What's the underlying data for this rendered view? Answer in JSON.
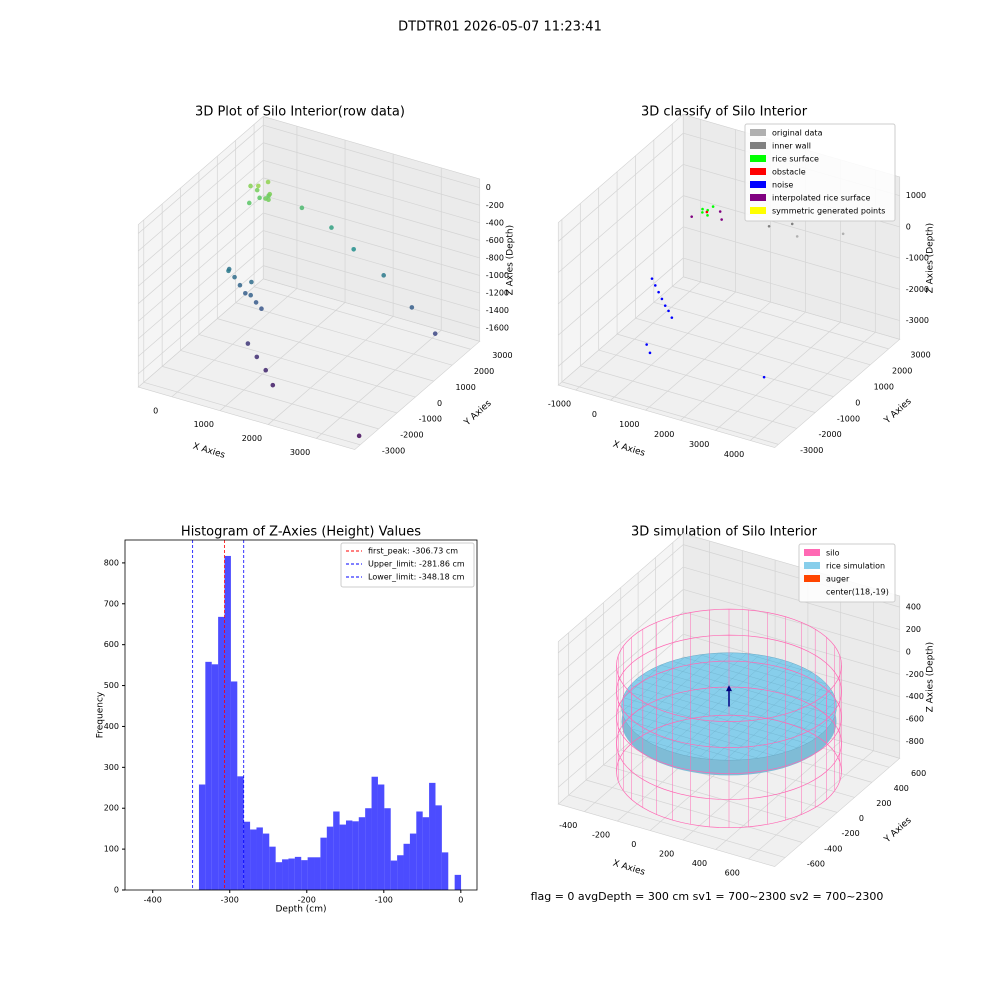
{
  "suptitle": "DTDTR01 2026-05-07 11:23:41",
  "footer": "flag = 0     avgDepth = 300 cm  sv1 = 700~2300  sv2 = 700~2300",
  "chart_data": [
    {
      "type": "scatter3d",
      "title": "3D Plot of Silo Interior(row data)",
      "xlabel": "X Axies",
      "ylabel": "Y Axies",
      "zlabel": "Z Axies (Depth)",
      "xlim": [
        -700,
        3800
      ],
      "ylim": [
        -3300,
        3500
      ],
      "zlim": [
        -1750,
        100
      ],
      "xticks": [
        0,
        1000,
        2000,
        3000
      ],
      "yticks": [
        -3000,
        -2000,
        -1000,
        0,
        1000,
        2000,
        3000
      ],
      "zticks": [
        -1600,
        -1400,
        -1200,
        -1000,
        -800,
        -600,
        -400,
        -200,
        0
      ],
      "colormap": "viridis",
      "x": [
        -200,
        -100,
        0,
        100,
        200,
        -150,
        50,
        150,
        -50,
        250,
        600,
        1100,
        1600,
        2300,
        3000,
        3600,
        -300,
        -150,
        0,
        150,
        300,
        450,
        600,
        -200,
        200,
        700,
        1000,
        1300,
        1600,
        3700
      ],
      "y": [
        1500,
        1600,
        1400,
        1700,
        1500,
        1300,
        1800,
        1400,
        1600,
        1300,
        2200,
        2500,
        2400,
        2200,
        1900,
        1600,
        600,
        500,
        400,
        300,
        200,
        100,
        0,
        300,
        500,
        -1000,
        -1300,
        -1600,
        -2000,
        -2800
      ],
      "z": [
        -250,
        -300,
        -200,
        -350,
        -280,
        -400,
        -220,
        -320,
        -380,
        -300,
        -500,
        -700,
        -850,
        -1000,
        -1200,
        -1350,
        -1050,
        -1100,
        -1150,
        -1200,
        -1180,
        -1220,
        -1250,
        -1000,
        -1100,
        -1450,
        -1500,
        -1550,
        -1600,
        -1700
      ]
    },
    {
      "type": "scatter3d",
      "title": "3D classify of Silo Interior",
      "xlabel": "X Axies",
      "ylabel": "Y Axies",
      "zlabel": "Z Axies (Depth)",
      "xlim": [
        -1500,
        4700
      ],
      "ylim": [
        -3200,
        3600
      ],
      "zlim": [
        -3600,
        1600
      ],
      "xticks": [
        -1000,
        0,
        1000,
        2000,
        3000,
        4000
      ],
      "yticks": [
        -3000,
        -2000,
        -1000,
        0,
        1000,
        2000,
        3000
      ],
      "zticks": [
        -3000,
        -2000,
        -1000,
        0,
        1000
      ],
      "series": [
        {
          "name": "original data",
          "color": "#b0b0b0",
          "x": [
            2500,
            3500
          ],
          "y": [
            2200,
            2800
          ],
          "z": [
            -300,
            -200
          ]
        },
        {
          "name": "inner wall",
          "color": "#808080",
          "x": [
            1800,
            2200
          ],
          "y": [
            2000,
            2500
          ],
          "z": [
            -100,
            -150
          ]
        },
        {
          "name": "rice surface",
          "color": "#00ff00",
          "x": [
            100,
            200,
            300,
            0,
            250
          ],
          "y": [
            1600,
            1700,
            1500,
            1800,
            1900
          ],
          "z": [
            0,
            50,
            20,
            -30,
            80
          ]
        },
        {
          "name": "obstacle",
          "color": "#ff0000",
          "x": [
            150
          ],
          "y": [
            1750
          ],
          "z": [
            -50
          ]
        },
        {
          "name": "noise",
          "color": "#0000ff",
          "x": [
            -500,
            -300,
            -100,
            100,
            300,
            500,
            700,
            400,
            600,
            3500
          ],
          "y": [
            0,
            -200,
            -400,
            -600,
            -800,
            -1000,
            -1200,
            -2000,
            -2200,
            -1500
          ],
          "z": [
            -1500,
            -1550,
            -1600,
            -1650,
            -1700,
            -1700,
            -1750,
            -2300,
            -2400,
            -2600
          ]
        },
        {
          "name": "interpolated rice surface",
          "color": "#800080",
          "x": [
            -100,
            400,
            600
          ],
          "y": [
            1400,
            2000,
            1700
          ],
          "z": [
            -100,
            -80,
            -120
          ]
        },
        {
          "name": "symmetric generated points",
          "color": "#ffff00",
          "x": [],
          "y": [],
          "z": []
        }
      ]
    },
    {
      "type": "histogram",
      "title": "Histogram of Z-Axies (Height) Values",
      "xlabel": "Depth (cm)",
      "ylabel": "Frequency",
      "xlim": [
        -436,
        21
      ],
      "ylim": [
        0,
        856
      ],
      "xticks": [
        -400,
        -300,
        -200,
        -100,
        0
      ],
      "yticks": [
        0,
        100,
        200,
        300,
        400,
        500,
        600,
        700,
        800
      ],
      "color": "#0000ff",
      "bins": [
        -340,
        -331.7,
        -323.4,
        -315.1,
        -306.8,
        -298.5,
        -290.2,
        -281.9,
        -273.6,
        -265.3,
        -257.0,
        -248.7,
        -240.4,
        -232.1,
        -223.8,
        -215.5,
        -207.2,
        -198.9,
        -190.6,
        -182.3,
        -174.0,
        -165.7,
        -157.4,
        -149.1,
        -140.8,
        -132.5,
        -124.2,
        -115.9,
        -107.6,
        -99.3,
        -91.0,
        -82.7,
        -74.4,
        -66.1,
        -57.8,
        -49.5,
        -41.2,
        -32.9,
        -24.6,
        -16.3,
        -8.0,
        0.3
      ],
      "counts": [
        258,
        558,
        552,
        668,
        817,
        510,
        278,
        167,
        148,
        153,
        138,
        106,
        68,
        75,
        77,
        81,
        73,
        80,
        80,
        128,
        155,
        192,
        160,
        170,
        168,
        178,
        200,
        277,
        258,
        200,
        72,
        85,
        113,
        138,
        192,
        178,
        262,
        207,
        92,
        0,
        37
      ],
      "lines": [
        {
          "label": "first_peak: -306.73 cm",
          "value": -306.73,
          "color": "#ff0000"
        },
        {
          "label": "Upper_limit: -281.86 cm",
          "value": -281.86,
          "color": "#0000ff"
        },
        {
          "label": "Lower_limit: -348.18 cm",
          "value": -348.18,
          "color": "#0000ff"
        }
      ]
    },
    {
      "type": "surface3d",
      "title": "3D simulation of Silo Interior",
      "xlabel": "X Axies",
      "ylabel": "Y Axies",
      "zlabel": "Z Axies (Depth)",
      "xlim": [
        -560,
        760
      ],
      "ylim": [
        -720,
        720
      ],
      "zlim": [
        -950,
        500
      ],
      "xticks": [
        -400,
        -200,
        0,
        200,
        400,
        600
      ],
      "yticks": [
        -600,
        -400,
        -200,
        0,
        200,
        400,
        600
      ],
      "zticks": [
        -800,
        -600,
        -400,
        -200,
        0,
        200,
        400
      ],
      "legend": [
        {
          "name": "silo",
          "color": "#ff69b4"
        },
        {
          "name": "rice simulation",
          "color": "#87ceeb"
        },
        {
          "name": "auger",
          "color": "#ff4500"
        },
        {
          "name": "center(118,-19)"
        }
      ]
    }
  ]
}
